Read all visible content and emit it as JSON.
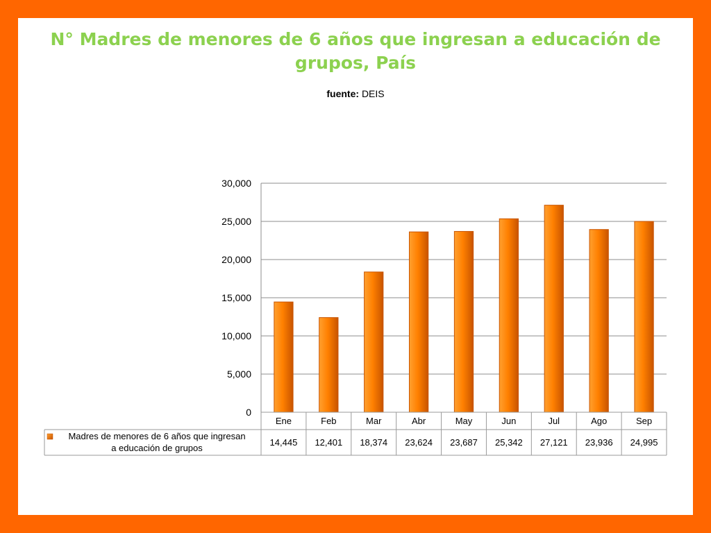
{
  "slide": {
    "title_line1": "N°   Madres de menores de 6 años que ingresan a educación de",
    "title_line2": "grupos, País",
    "source_label": "fuente:",
    "source_value": "DEIS"
  },
  "colors": {
    "frame": "#ff6600",
    "title": "#8cd14f",
    "bar_light": "#ffa030",
    "bar_mid": "#ff8000",
    "bar_dark": "#c85400"
  },
  "chart_data": {
    "type": "bar",
    "categories": [
      "Ene",
      "Feb",
      "Mar",
      "Abr",
      "May",
      "Jun",
      "Jul",
      "Ago",
      "Sep"
    ],
    "series": [
      {
        "name_line1": "Madres de menores de 6 años que ingresan",
        "name_line2": "a educación de grupos",
        "values": [
          14445,
          12401,
          18374,
          23624,
          23687,
          25342,
          27121,
          23936,
          24995
        ],
        "value_labels": [
          "14,445",
          "12,401",
          "18,374",
          "23,624",
          "23,687",
          "25,342",
          "27,121",
          "23,936",
          "24,995"
        ]
      }
    ],
    "ylim": [
      0,
      30000
    ],
    "yticks": [
      0,
      5000,
      10000,
      15000,
      20000,
      25000,
      30000
    ],
    "ytick_labels": [
      "0",
      "5,000",
      "10,000",
      "15,000",
      "20,000",
      "25,000",
      "30,000"
    ],
    "grid": true,
    "legend": "data-table"
  }
}
